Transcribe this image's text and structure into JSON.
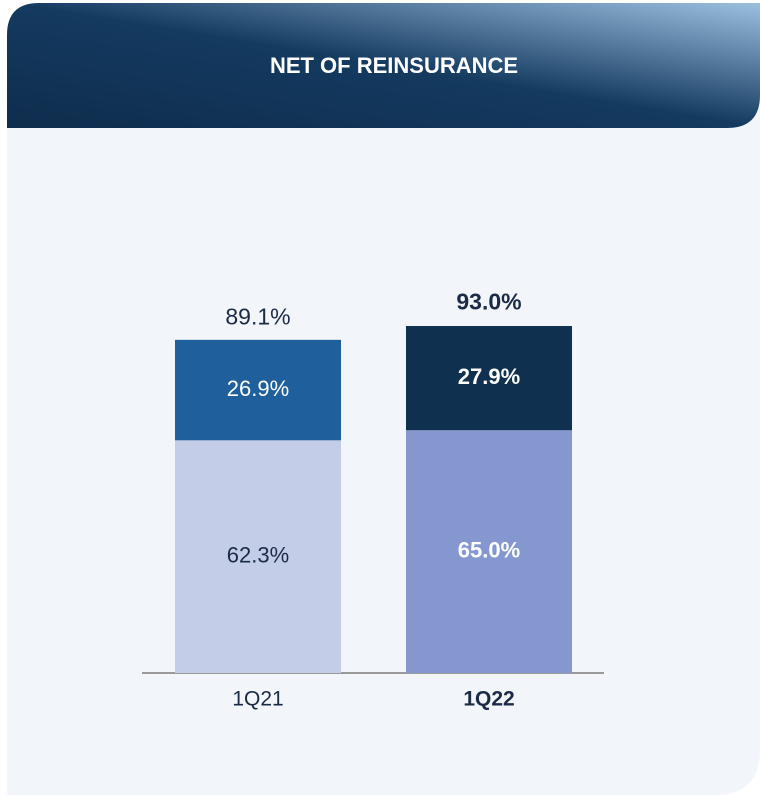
{
  "chart_data": {
    "type": "stacked_bar",
    "title": "NET OF REINSURANCE",
    "categories": [
      "1Q21",
      "1Q22"
    ],
    "highlight": [
      false,
      true
    ],
    "series": [
      {
        "values": [
          62.3,
          65.0
        ],
        "value_labels": [
          "62.3%",
          "65.0%"
        ],
        "colors": [
          "#c3cde8",
          "#8597cf"
        ],
        "label_colors": [
          "#1b2b45",
          "#ffffff"
        ]
      },
      {
        "values": [
          26.9,
          27.9
        ],
        "value_labels": [
          "26.9%",
          "27.9%"
        ],
        "colors": [
          "#1f5f9c",
          "#10304f"
        ],
        "label_colors": [
          "#ffffff",
          "#ffffff"
        ]
      }
    ],
    "totals": [
      89.1,
      93.0
    ],
    "total_labels": [
      "89.1%",
      "93.0%"
    ]
  }
}
